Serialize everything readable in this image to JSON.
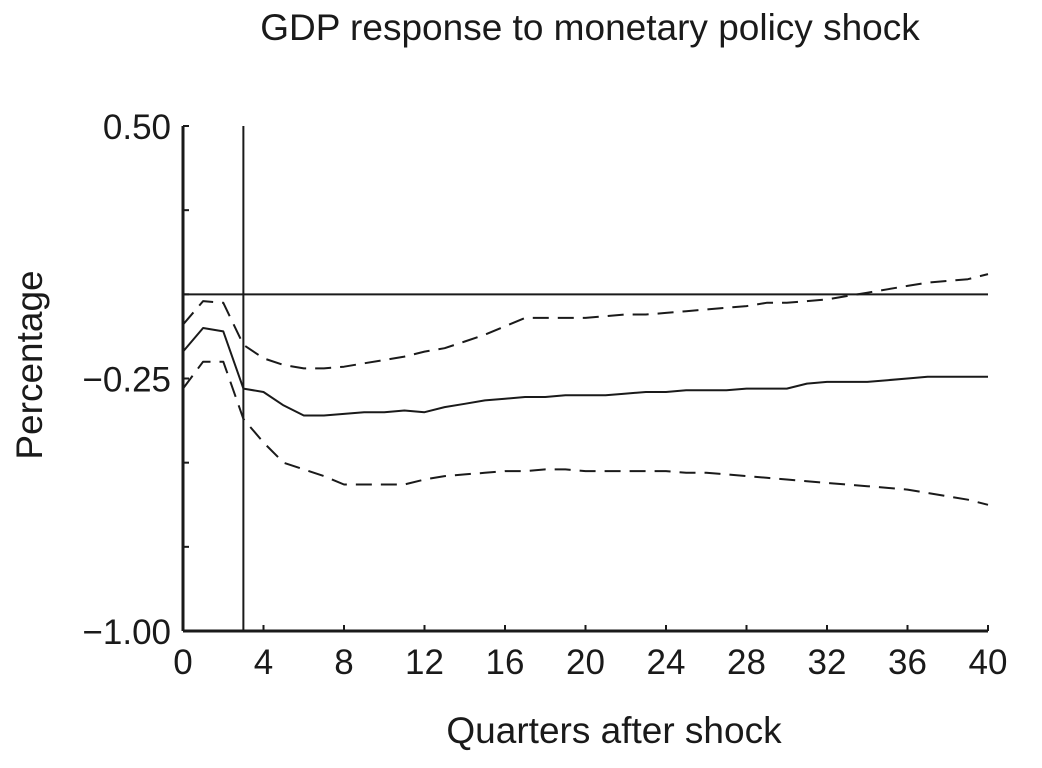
{
  "chart_data": {
    "type": "line",
    "title": "GDP response to monetary policy shock",
    "xlabel": "Quarters after shock",
    "ylabel": "Percentage",
    "xlim": [
      0,
      40
    ],
    "ylim": [
      -1.0,
      0.5
    ],
    "x_ticks": [
      0,
      4,
      8,
      12,
      16,
      20,
      24,
      28,
      32,
      36,
      40
    ],
    "x_tick_labels": [
      "0",
      "4",
      "8",
      "12",
      "16",
      "20",
      "24",
      "28",
      "32",
      "36",
      "40"
    ],
    "y_ticks": [
      -1.0,
      -0.75,
      -0.5,
      -0.25,
      0.0,
      0.25,
      0.5
    ],
    "y_tick_labels": [
      "−1.00",
      "",
      "",
      "−0.25",
      "",
      "",
      "0.50"
    ],
    "reference_lines": {
      "horizontal_y": 0.0,
      "vertical_x": 3
    },
    "grid": false,
    "legend": "none",
    "series": [
      {
        "style": "solid",
        "x": [
          0,
          1,
          2,
          3,
          4,
          5,
          6,
          7,
          8,
          9,
          10,
          11,
          12,
          13,
          14,
          15,
          16,
          17,
          18,
          19,
          20,
          21,
          22,
          23,
          24,
          25,
          26,
          27,
          28,
          29,
          30,
          31,
          32,
          33,
          34,
          35,
          36,
          37,
          38,
          39,
          40
        ],
        "values": [
          -0.17,
          -0.1,
          -0.11,
          -0.28,
          -0.29,
          -0.33,
          -0.36,
          -0.36,
          -0.355,
          -0.35,
          -0.35,
          -0.345,
          -0.35,
          -0.335,
          -0.325,
          -0.315,
          -0.31,
          -0.305,
          -0.305,
          -0.3,
          -0.3,
          -0.3,
          -0.295,
          -0.29,
          -0.29,
          -0.285,
          -0.285,
          -0.285,
          -0.28,
          -0.28,
          -0.28,
          -0.265,
          -0.26,
          -0.26,
          -0.26,
          -0.255,
          -0.25,
          -0.245,
          -0.245,
          -0.245,
          -0.245
        ]
      },
      {
        "style": "dashed",
        "x": [
          0,
          1,
          2,
          3,
          4,
          5,
          6,
          7,
          8,
          9,
          10,
          11,
          12,
          13,
          14,
          15,
          16,
          17,
          18,
          19,
          20,
          21,
          22,
          23,
          24,
          25,
          26,
          27,
          28,
          29,
          30,
          31,
          32,
          33,
          34,
          35,
          36,
          37,
          38,
          39,
          40
        ],
        "values": [
          -0.09,
          -0.02,
          -0.025,
          -0.15,
          -0.19,
          -0.21,
          -0.22,
          -0.22,
          -0.215,
          -0.205,
          -0.195,
          -0.185,
          -0.17,
          -0.16,
          -0.14,
          -0.12,
          -0.095,
          -0.07,
          -0.07,
          -0.07,
          -0.07,
          -0.065,
          -0.06,
          -0.06,
          -0.055,
          -0.05,
          -0.045,
          -0.04,
          -0.035,
          -0.025,
          -0.025,
          -0.02,
          -0.015,
          -0.005,
          0.005,
          0.015,
          0.025,
          0.035,
          0.04,
          0.045,
          0.06
        ]
      },
      {
        "style": "dashed",
        "x": [
          0,
          1,
          2,
          3,
          4,
          5,
          6,
          7,
          8,
          9,
          10,
          11,
          12,
          13,
          14,
          15,
          16,
          17,
          18,
          19,
          20,
          21,
          22,
          23,
          24,
          25,
          26,
          27,
          28,
          29,
          30,
          31,
          32,
          33,
          34,
          35,
          36,
          37,
          38,
          39,
          40
        ],
        "values": [
          -0.28,
          -0.2,
          -0.2,
          -0.37,
          -0.44,
          -0.5,
          -0.52,
          -0.54,
          -0.565,
          -0.565,
          -0.565,
          -0.565,
          -0.55,
          -0.54,
          -0.535,
          -0.53,
          -0.525,
          -0.525,
          -0.52,
          -0.52,
          -0.525,
          -0.525,
          -0.525,
          -0.525,
          -0.525,
          -0.53,
          -0.53,
          -0.535,
          -0.54,
          -0.545,
          -0.55,
          -0.555,
          -0.56,
          -0.565,
          -0.57,
          -0.575,
          -0.58,
          -0.59,
          -0.6,
          -0.61,
          -0.625
        ]
      }
    ]
  }
}
